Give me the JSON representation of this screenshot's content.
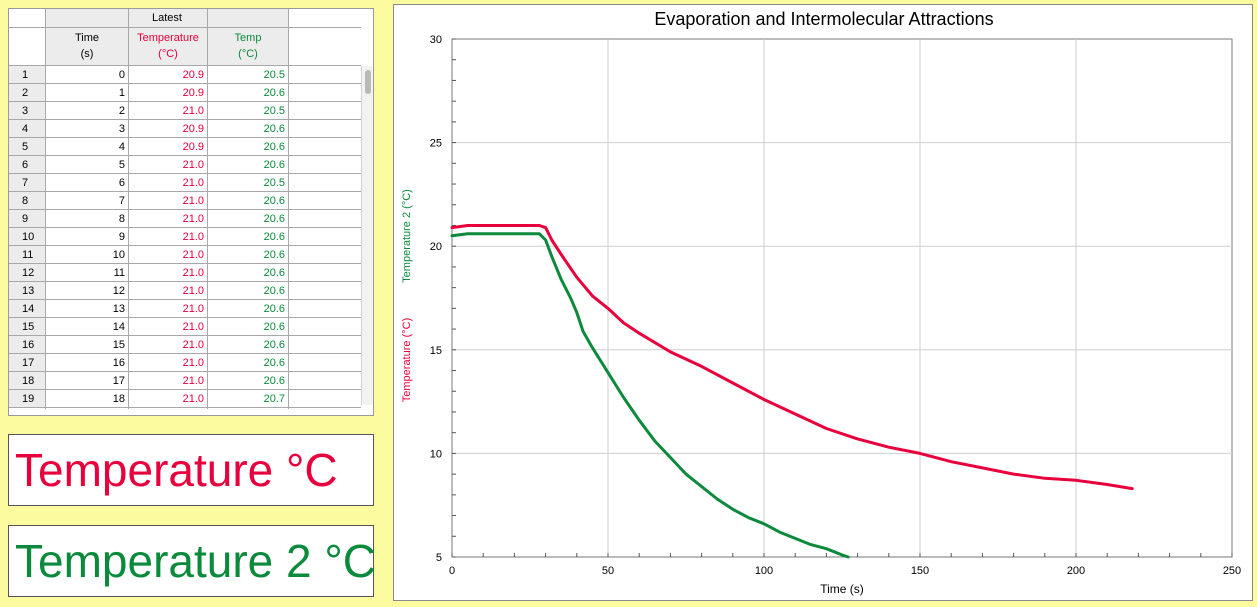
{
  "table": {
    "group_header": "Latest",
    "columns": [
      {
        "line1": "Time",
        "line2": "(s)",
        "color": "#000000"
      },
      {
        "line1": "Temperature",
        "line2": "(°C)",
        "color": "#e8003c"
      },
      {
        "line1": "Temp",
        "line2": "(°C)",
        "color": "#0b8a3c"
      }
    ],
    "rows": [
      {
        "n": "1",
        "t": "0",
        "temp1": "20.9",
        "temp2": "20.5"
      },
      {
        "n": "2",
        "t": "1",
        "temp1": "20.9",
        "temp2": "20.6"
      },
      {
        "n": "3",
        "t": "2",
        "temp1": "21.0",
        "temp2": "20.5"
      },
      {
        "n": "4",
        "t": "3",
        "temp1": "20.9",
        "temp2": "20.6"
      },
      {
        "n": "5",
        "t": "4",
        "temp1": "20.9",
        "temp2": "20.6"
      },
      {
        "n": "6",
        "t": "5",
        "temp1": "21.0",
        "temp2": "20.6"
      },
      {
        "n": "7",
        "t": "6",
        "temp1": "21.0",
        "temp2": "20.5"
      },
      {
        "n": "8",
        "t": "7",
        "temp1": "21.0",
        "temp2": "20.6"
      },
      {
        "n": "9",
        "t": "8",
        "temp1": "21.0",
        "temp2": "20.6"
      },
      {
        "n": "10",
        "t": "9",
        "temp1": "21.0",
        "temp2": "20.6"
      },
      {
        "n": "11",
        "t": "10",
        "temp1": "21.0",
        "temp2": "20.6"
      },
      {
        "n": "12",
        "t": "11",
        "temp1": "21.0",
        "temp2": "20.6"
      },
      {
        "n": "13",
        "t": "12",
        "temp1": "21.0",
        "temp2": "20.6"
      },
      {
        "n": "14",
        "t": "13",
        "temp1": "21.0",
        "temp2": "20.6"
      },
      {
        "n": "15",
        "t": "14",
        "temp1": "21.0",
        "temp2": "20.6"
      },
      {
        "n": "16",
        "t": "15",
        "temp1": "21.0",
        "temp2": "20.6"
      },
      {
        "n": "17",
        "t": "16",
        "temp1": "21.0",
        "temp2": "20.6"
      },
      {
        "n": "18",
        "t": "17",
        "temp1": "21.0",
        "temp2": "20.6"
      },
      {
        "n": "19",
        "t": "18",
        "temp1": "21.0",
        "temp2": "20.7"
      }
    ]
  },
  "meters": [
    {
      "label": "Temperature  °C",
      "color": "#e8003c"
    },
    {
      "label": "Temperature 2  °C",
      "color": "#0b8a3c"
    }
  ],
  "chart_data": {
    "type": "line",
    "title": "Evaporation and Intermolecular Attractions",
    "xlabel": "Time (s)",
    "ylabels": [
      {
        "text": "Temperature (°C)",
        "color": "#e8003c"
      },
      {
        "text": "Temperature 2 (°C)",
        "color": "#0b8a3c"
      }
    ],
    "xlim": [
      0,
      250
    ],
    "ylim": [
      5,
      30
    ],
    "xticks": [
      0,
      50,
      100,
      150,
      200,
      250
    ],
    "yticks": [
      5,
      10,
      15,
      20,
      25,
      30
    ],
    "grid": true,
    "series": [
      {
        "color": "#e8003c",
        "x": [
          0,
          5,
          10,
          15,
          20,
          25,
          28,
          30,
          32,
          35,
          40,
          45,
          50,
          55,
          60,
          70,
          80,
          90,
          100,
          110,
          120,
          130,
          140,
          150,
          160,
          170,
          180,
          190,
          200,
          210,
          218
        ],
        "y": [
          20.9,
          21.0,
          21.0,
          21.0,
          21.0,
          21.0,
          21.0,
          20.9,
          20.3,
          19.6,
          18.5,
          17.6,
          17.0,
          16.3,
          15.8,
          14.9,
          14.2,
          13.4,
          12.6,
          11.9,
          11.2,
          10.7,
          10.3,
          10.0,
          9.6,
          9.3,
          9.0,
          8.8,
          8.7,
          8.5,
          8.3
        ]
      },
      {
        "color": "#0b8a3c",
        "x": [
          0,
          5,
          10,
          15,
          20,
          25,
          28,
          30,
          32,
          35,
          38,
          40,
          42,
          45,
          50,
          55,
          60,
          65,
          70,
          75,
          80,
          85,
          90,
          95,
          100,
          105,
          110,
          115,
          120,
          125,
          127
        ],
        "y": [
          20.5,
          20.6,
          20.6,
          20.6,
          20.6,
          20.6,
          20.6,
          20.3,
          19.5,
          18.4,
          17.5,
          16.8,
          15.9,
          15.1,
          13.9,
          12.7,
          11.6,
          10.6,
          9.8,
          9.0,
          8.4,
          7.8,
          7.3,
          6.9,
          6.6,
          6.2,
          5.9,
          5.6,
          5.4,
          5.1,
          5.0
        ]
      }
    ]
  }
}
